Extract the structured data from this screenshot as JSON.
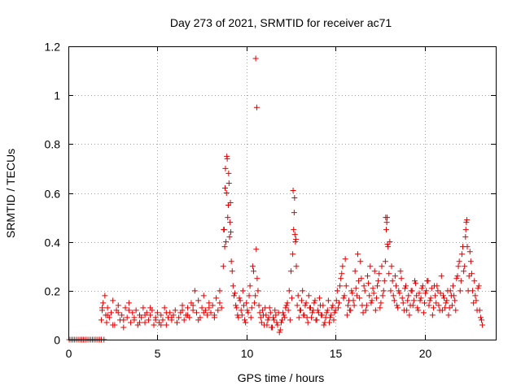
{
  "chart_data": {
    "type": "scatter",
    "title": "Day 273 of 2021, SRMTID for receiver ac71",
    "xlabel": "GPS time / hours",
    "ylabel": "SRMTID / TECUs",
    "xlim": [
      0,
      24
    ],
    "ylim": [
      0,
      1.2
    ],
    "xticks": [
      0,
      5,
      10,
      15,
      20
    ],
    "xtick_labels": [
      "0",
      "5",
      "10",
      "15",
      "20"
    ],
    "yticks": [
      0,
      0.2,
      0.4,
      0.6,
      0.8,
      1,
      1.2
    ],
    "ytick_labels": [
      "0",
      "0.2",
      "0.4",
      "0.6",
      "0.8",
      "1",
      "1.2"
    ],
    "grid": true,
    "marker": "+",
    "color": "#e00000",
    "series": [
      {
        "name": "SRMTID",
        "x": [
          0.05,
          0.15,
          0.25,
          0.35,
          0.45,
          0.55,
          0.65,
          0.75,
          0.85,
          0.95,
          1.05,
          1.15,
          1.25,
          1.35,
          1.45,
          1.55,
          1.65,
          1.75,
          1.85,
          2.0,
          1.85,
          1.9,
          1.95,
          2.05,
          2.1,
          2.15,
          2.2,
          2.3,
          2.4,
          2.5,
          2.6,
          2.7,
          2.8,
          2.9,
          3.0,
          3.1,
          3.2,
          3.3,
          3.4,
          3.5,
          3.6,
          3.7,
          3.8,
          3.9,
          4.0,
          4.1,
          4.2,
          4.3,
          4.4,
          4.5,
          4.6,
          4.7,
          4.8,
          4.9,
          5.0,
          5.1,
          5.2,
          5.3,
          5.4,
          5.5,
          5.6,
          5.7,
          5.8,
          5.9,
          6.0,
          6.1,
          6.2,
          6.3,
          6.4,
          6.5,
          6.6,
          6.7,
          6.8,
          6.9,
          7.0,
          7.1,
          7.2,
          7.3,
          7.4,
          7.5,
          7.6,
          7.7,
          7.8,
          7.9,
          8.0,
          8.1,
          8.2,
          8.3,
          8.4,
          8.5,
          8.6,
          8.7,
          8.75,
          8.8,
          8.85,
          8.9,
          8.95,
          9.0,
          9.05,
          9.1,
          9.15,
          9.2,
          9.25,
          9.3,
          9.4,
          9.5,
          9.6,
          9.7,
          9.8,
          9.9,
          10.0,
          10.1,
          10.2,
          10.3,
          10.4,
          10.5,
          10.55,
          10.6,
          10.7,
          10.8,
          10.9,
          11.0,
          11.1,
          11.2,
          11.3,
          11.4,
          11.5,
          11.6,
          11.7,
          11.8,
          11.9,
          12.0,
          12.1,
          12.2,
          12.3,
          12.4,
          12.5,
          12.6,
          12.65,
          12.7,
          12.75,
          12.8,
          12.9,
          13.0,
          13.1,
          13.2,
          13.3,
          13.4,
          13.5,
          13.6,
          13.7,
          13.8,
          13.9,
          14.0,
          14.1,
          14.2,
          14.3,
          14.4,
          14.5,
          14.6,
          14.7,
          14.8,
          14.9,
          15.0,
          15.1,
          15.2,
          15.3,
          15.4,
          15.5,
          15.6,
          15.7,
          15.8,
          15.9,
          16.0,
          16.1,
          16.2,
          16.3,
          16.4,
          16.5,
          16.6,
          16.7,
          16.8,
          16.9,
          17.0,
          17.1,
          17.2,
          17.3,
          17.4,
          17.5,
          17.6,
          17.7,
          17.8,
          17.85,
          17.9,
          17.95,
          18.0,
          18.1,
          18.2,
          18.3,
          18.4,
          18.5,
          18.6,
          18.7,
          18.8,
          18.9,
          19.0,
          19.1,
          19.2,
          19.3,
          19.4,
          19.5,
          19.6,
          19.7,
          19.8,
          19.9,
          20.0,
          20.1,
          20.2,
          20.3,
          20.4,
          20.5,
          20.6,
          20.7,
          20.8,
          20.9,
          21.0,
          21.1,
          21.2,
          21.3,
          21.4,
          21.5,
          21.6,
          21.7,
          21.8,
          21.9,
          22.0,
          22.1,
          22.2,
          22.3,
          22.35,
          22.4,
          22.5,
          22.6,
          22.7,
          22.8,
          22.9,
          23.0,
          23.1,
          23.2,
          1.9,
          2.2,
          2.5,
          2.8,
          3.1,
          3.4,
          3.7,
          4.0,
          4.3,
          4.6,
          4.9,
          5.2,
          5.5,
          5.8,
          6.1,
          6.4,
          6.7,
          7.0,
          7.3,
          7.6,
          7.9,
          8.2,
          8.5,
          9.35,
          9.45,
          9.55,
          9.65,
          9.75,
          9.85,
          9.95,
          10.05,
          10.15,
          10.25,
          10.35,
          10.45,
          10.65,
          10.75,
          10.85,
          10.95,
          11.05,
          11.15,
          11.25,
          11.35,
          11.45,
          11.55,
          11.65,
          11.75,
          11.85,
          11.95,
          12.05,
          12.15,
          12.25,
          12.35,
          12.45,
          12.55,
          12.85,
          12.95,
          13.05,
          13.15,
          13.25,
          13.35,
          13.45,
          13.55,
          13.65,
          13.75,
          13.85,
          13.95,
          14.05,
          14.15,
          14.25,
          14.35,
          14.45,
          14.55,
          14.65,
          14.75,
          14.85,
          14.95,
          15.05,
          15.15,
          15.25,
          15.35,
          15.45,
          15.55,
          15.65,
          15.75,
          15.85,
          15.95,
          16.05,
          16.15,
          16.25,
          16.35,
          16.45,
          16.55,
          16.65,
          16.75,
          16.85,
          16.95,
          17.05,
          17.15,
          17.25,
          17.35,
          17.45,
          17.55,
          17.65,
          17.75,
          18.05,
          18.15,
          18.25,
          18.35,
          18.45,
          18.55,
          18.65,
          18.75,
          18.85,
          18.95,
          19.05,
          19.15,
          19.25,
          19.35,
          19.45,
          19.55,
          19.65,
          19.75,
          19.85,
          19.95,
          20.05,
          20.15,
          20.25,
          20.35,
          20.45,
          20.55,
          20.65,
          20.75,
          20.85,
          20.95,
          21.05,
          21.15,
          21.25,
          21.35,
          21.45,
          21.55,
          21.65,
          21.75,
          21.85,
          21.95,
          22.05,
          22.15,
          22.25,
          22.45,
          22.55,
          22.65,
          22.75,
          22.85,
          22.95,
          23.05,
          23.15,
          23.25,
          8.72,
          8.78,
          8.82,
          8.88,
          8.92,
          8.98,
          9.02,
          9.08,
          9.12,
          10.52,
          10.58,
          12.62,
          12.68,
          12.72,
          12.78,
          17.82,
          17.88,
          17.92,
          22.32,
          22.38
        ],
        "y": [
          0,
          0,
          0,
          0,
          0,
          0,
          0,
          0,
          0,
          0,
          0,
          0,
          0,
          0,
          0,
          0,
          0,
          0,
          0,
          0,
          0.08,
          0.12,
          0.15,
          0.18,
          0.1,
          0.07,
          0.13,
          0.09,
          0.11,
          0.16,
          0.06,
          0.12,
          0.14,
          0.08,
          0.1,
          0.05,
          0.13,
          0.09,
          0.15,
          0.07,
          0.11,
          0.08,
          0.12,
          0.06,
          0.1,
          0.09,
          0.13,
          0.07,
          0.11,
          0.08,
          0.1,
          0.12,
          0.06,
          0.09,
          0.11,
          0.07,
          0.1,
          0.08,
          0.13,
          0.06,
          0.09,
          0.11,
          0.08,
          0.1,
          0.12,
          0.07,
          0.09,
          0.11,
          0.14,
          0.08,
          0.1,
          0.13,
          0.09,
          0.15,
          0.12,
          0.2,
          0.11,
          0.16,
          0.09,
          0.13,
          0.18,
          0.12,
          0.1,
          0.15,
          0.11,
          0.14,
          0.09,
          0.17,
          0.12,
          0.2,
          0.13,
          0.3,
          0.45,
          0.62,
          0.4,
          0.75,
          0.5,
          0.68,
          0.42,
          0.56,
          0.32,
          0.28,
          0.22,
          0.18,
          0.14,
          0.1,
          0.17,
          0.12,
          0.2,
          0.08,
          0.15,
          0.11,
          0.22,
          0.13,
          0.28,
          0.18,
          0.37,
          0.25,
          0.14,
          0.09,
          0.12,
          0.06,
          0.1,
          0.08,
          0.13,
          0.05,
          0.09,
          0.12,
          0.07,
          0.11,
          0.04,
          0.08,
          0.1,
          0.13,
          0.15,
          0.2,
          0.28,
          0.35,
          0.45,
          0.58,
          0.4,
          0.3,
          0.18,
          0.12,
          0.16,
          0.1,
          0.14,
          0.09,
          0.18,
          0.13,
          0.11,
          0.15,
          0.08,
          0.12,
          0.17,
          0.1,
          0.14,
          0.07,
          0.11,
          0.16,
          0.09,
          0.13,
          0.08,
          0.12,
          0.2,
          0.15,
          0.25,
          0.3,
          0.18,
          0.22,
          0.14,
          0.12,
          0.2,
          0.16,
          0.28,
          0.18,
          0.24,
          0.32,
          0.14,
          0.22,
          0.12,
          0.26,
          0.18,
          0.15,
          0.21,
          0.28,
          0.17,
          0.24,
          0.13,
          0.3,
          0.2,
          0.32,
          0.45,
          0.5,
          0.38,
          0.27,
          0.2,
          0.24,
          0.16,
          0.22,
          0.13,
          0.19,
          0.25,
          0.15,
          0.21,
          0.12,
          0.18,
          0.14,
          0.2,
          0.16,
          0.23,
          0.13,
          0.19,
          0.17,
          0.22,
          0.15,
          0.2,
          0.24,
          0.16,
          0.21,
          0.13,
          0.18,
          0.22,
          0.14,
          0.19,
          0.12,
          0.17,
          0.15,
          0.2,
          0.13,
          0.18,
          0.22,
          0.16,
          0.25,
          0.3,
          0.2,
          0.35,
          0.28,
          0.42,
          0.48,
          0.38,
          0.26,
          0.32,
          0.2,
          0.24,
          0.16,
          0.21,
          0.12,
          0.08,
          0.13,
          0.1,
          0.06,
          0.11,
          0.08,
          0.12,
          0.09,
          0.07,
          0.1,
          0.13,
          0.08,
          0.06,
          0.11,
          0.09,
          0.07,
          0.12,
          0.1,
          0.14,
          0.08,
          0.11,
          0.13,
          0.1,
          0.15,
          0.19,
          0.13,
          0.09,
          0.16,
          0.1,
          0.14,
          0.07,
          0.12,
          0.18,
          0.09,
          0.3,
          0.15,
          0.2,
          0.11,
          0.07,
          0.1,
          0.13,
          0.06,
          0.09,
          0.11,
          0.05,
          0.08,
          0.1,
          0.06,
          0.03,
          0.07,
          0.11,
          0.09,
          0.14,
          0.12,
          0.08,
          0.17,
          0.14,
          0.09,
          0.12,
          0.2,
          0.1,
          0.15,
          0.07,
          0.13,
          0.09,
          0.12,
          0.16,
          0.08,
          0.11,
          0.14,
          0.1,
          0.06,
          0.09,
          0.12,
          0.07,
          0.1,
          0.14,
          0.11,
          0.16,
          0.13,
          0.22,
          0.27,
          0.17,
          0.33,
          0.1,
          0.16,
          0.12,
          0.19,
          0.14,
          0.21,
          0.35,
          0.17,
          0.25,
          0.11,
          0.2,
          0.14,
          0.23,
          0.3,
          0.16,
          0.19,
          0.12,
          0.22,
          0.27,
          0.15,
          0.18,
          0.24,
          0.4,
          0.3,
          0.18,
          0.26,
          0.14,
          0.2,
          0.28,
          0.17,
          0.12,
          0.22,
          0.16,
          0.1,
          0.2,
          0.14,
          0.24,
          0.18,
          0.12,
          0.16,
          0.21,
          0.11,
          0.19,
          0.24,
          0.14,
          0.17,
          0.1,
          0.22,
          0.15,
          0.2,
          0.12,
          0.26,
          0.18,
          0.13,
          0.16,
          0.1,
          0.2,
          0.14,
          0.18,
          0.12,
          0.26,
          0.32,
          0.24,
          0.38,
          0.3,
          0.2,
          0.36,
          0.27,
          0.15,
          0.18,
          0.12,
          0.22,
          0.09,
          0.06,
          0.45,
          0.38,
          0.7,
          0.6,
          0.74,
          0.55,
          0.64,
          0.48,
          0.44,
          1.15,
          0.95,
          0.61,
          0.52,
          0.43,
          0.41,
          0.5,
          0.48,
          0.39,
          0.45,
          0.49
        ]
      }
    ]
  }
}
